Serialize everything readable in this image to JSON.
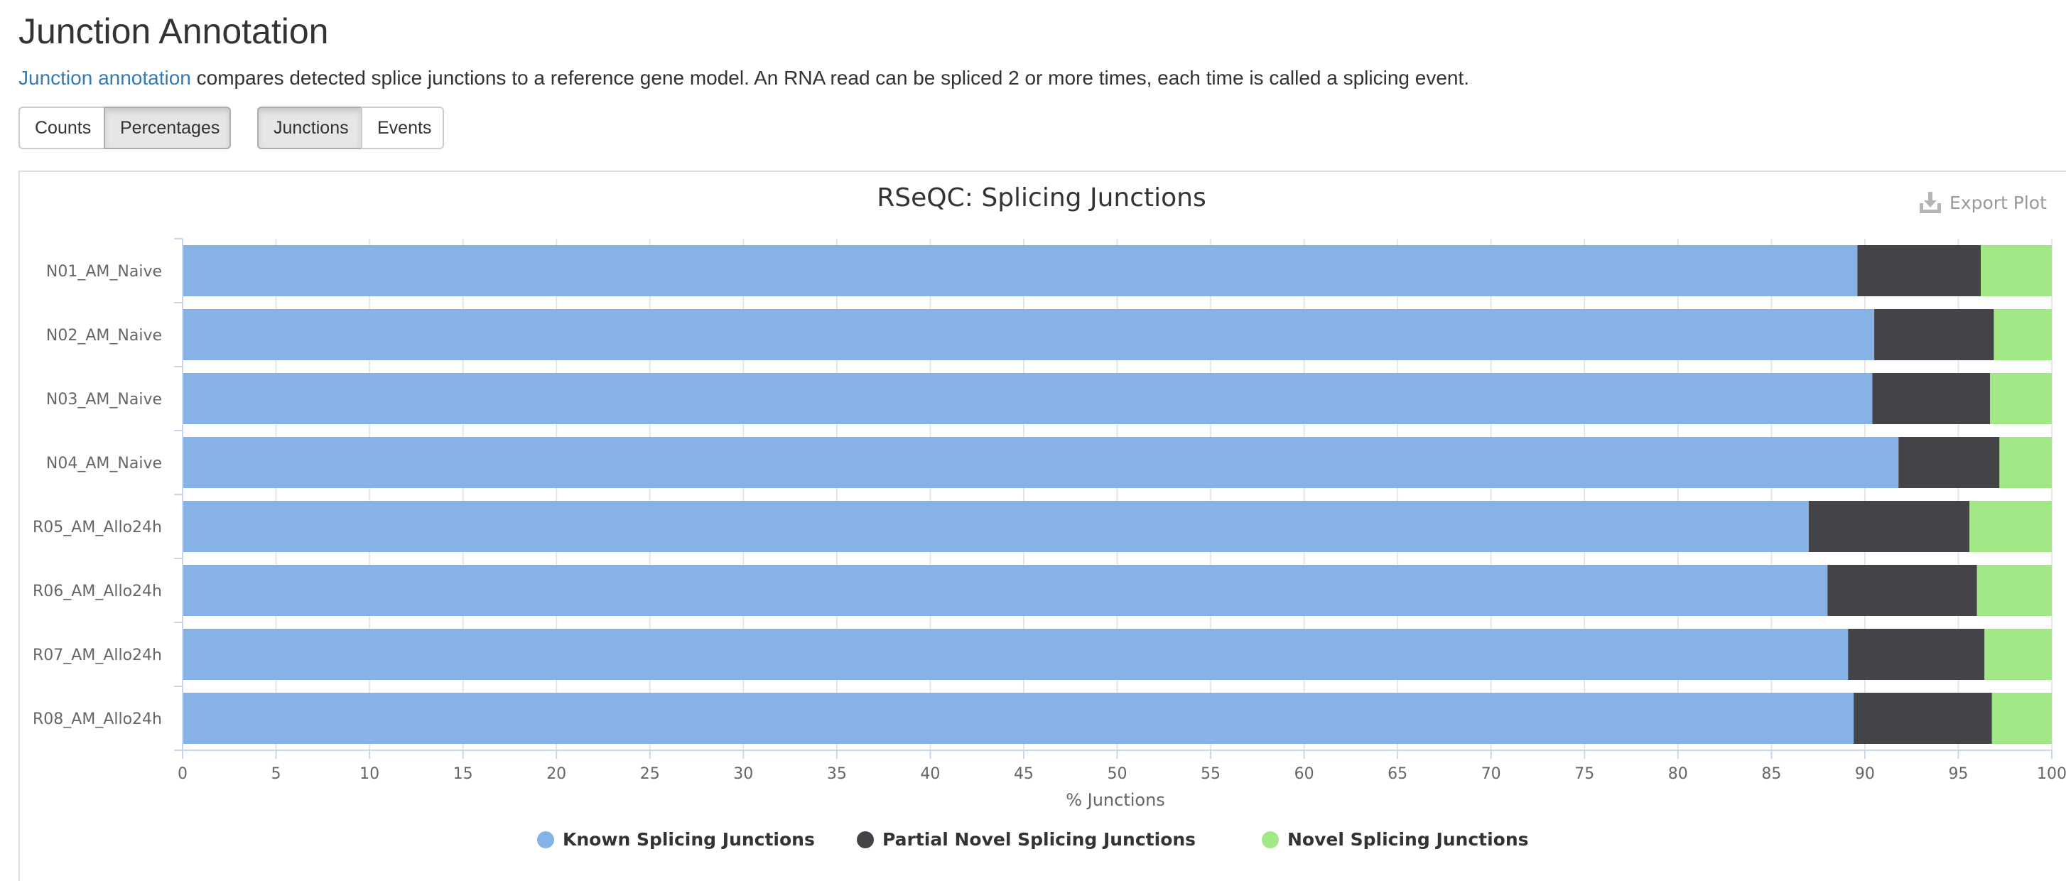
{
  "page": {
    "title": "Junction Annotation",
    "intro_link": "Junction annotation",
    "intro_text": " compares detected splice junctions to a reference gene model. An RNA read can be spliced 2 or more times, each time is called a splicing event."
  },
  "controls": {
    "data_mode": {
      "counts": "Counts",
      "percentages": "Percentages",
      "selected": "Percentages"
    },
    "dataset": {
      "junctions": "Junctions",
      "events": "Events",
      "selected": "Junctions"
    }
  },
  "plot": {
    "export_label": "Export Plot",
    "export_icon": "download-icon"
  },
  "chart_data": {
    "type": "bar",
    "orientation": "horizontal",
    "stacked": true,
    "title": "RSeQC: Splicing Junctions",
    "xlabel": "% Junctions",
    "xlim": [
      0,
      100
    ],
    "xticks": [
      0,
      5,
      10,
      15,
      20,
      25,
      30,
      35,
      40,
      45,
      50,
      55,
      60,
      65,
      70,
      75,
      80,
      85,
      90,
      95,
      100
    ],
    "grid": true,
    "legend_position": "bottom-center",
    "categories": [
      "N01_AM_Naive",
      "N02_AM_Naive",
      "N03_AM_Naive",
      "N04_AM_Naive",
      "R05_AM_Allo24h",
      "R06_AM_Allo24h",
      "R07_AM_Allo24h",
      "R08_AM_Allo24h"
    ],
    "series": [
      {
        "name": "Known Splicing Junctions",
        "color": "#86b2e6",
        "values": [
          89.6,
          90.5,
          90.4,
          91.8,
          87.0,
          88.0,
          89.1,
          89.4
        ]
      },
      {
        "name": "Partial Novel Splicing Junctions",
        "color": "#434348",
        "values": [
          6.6,
          6.4,
          6.3,
          5.4,
          8.6,
          8.0,
          7.3,
          7.4
        ]
      },
      {
        "name": "Novel Splicing Junctions",
        "color": "#a3e886",
        "values": [
          3.8,
          3.1,
          3.3,
          2.8,
          4.4,
          4.0,
          3.6,
          3.2
        ]
      }
    ]
  }
}
